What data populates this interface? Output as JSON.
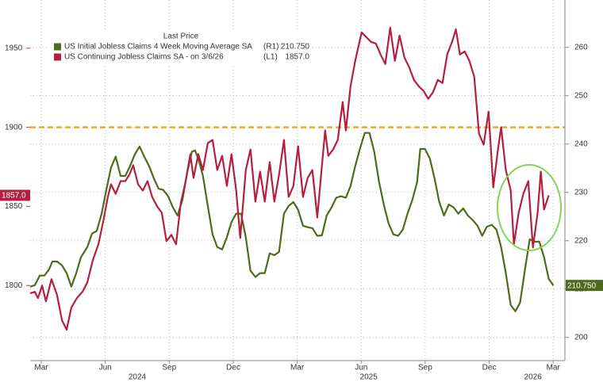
{
  "chart_data": {
    "type": "line",
    "legend_title": "Last Price",
    "legend": "upper left",
    "grid": true,
    "xlim": [
      -0.52,
      24.55
    ],
    "xticks": [
      {
        "value": 0,
        "label": "Mar"
      },
      {
        "value": 3,
        "label": "Jun"
      },
      {
        "value": 6,
        "label": "Sep"
      },
      {
        "value": 9,
        "label": "Dec"
      },
      {
        "value": 12,
        "label": "Mar"
      },
      {
        "value": 15,
        "label": "Jun"
      },
      {
        "value": 18,
        "label": "Sep"
      },
      {
        "value": 21,
        "label": "Dec"
      },
      {
        "value": 24,
        "label": "Mar"
      }
    ],
    "year_ticks": [
      {
        "value": 4.5,
        "label": "2024"
      },
      {
        "value": 15.35,
        "label": "2025"
      },
      {
        "value": 23.05,
        "label": "2026"
      }
    ],
    "ylim": [
      1752.5,
      1980.5
    ],
    "yticks": [
      1800,
      1850,
      1900,
      1950
    ],
    "y2lim": [
      195.2,
      269.8
    ],
    "y2ticks": [
      200,
      210,
      220,
      230,
      240,
      250,
      260
    ],
    "hline": {
      "value": 1900,
      "color": "#f5a623"
    },
    "series": [
      {
        "name": "US Initial Jobless Claims 4 Week Moving Average SA",
        "axis_tag": "(R1)",
        "last_label": "210.750",
        "axis": "y2",
        "color": "#4e6b1c",
        "x": [
          -0.52,
          -0.3,
          -0.07,
          0.15,
          0.37,
          0.52,
          0.74,
          0.97,
          1.19,
          1.41,
          1.64,
          1.86,
          2.16,
          2.38,
          2.6,
          2.83,
          3.05,
          3.27,
          3.49,
          3.72,
          3.94,
          4.16,
          4.39,
          4.61,
          4.83,
          5.06,
          5.28,
          5.5,
          5.72,
          5.95,
          6.17,
          6.39,
          6.62,
          6.84,
          7.06,
          7.21,
          7.36,
          7.58,
          7.81,
          8.03,
          8.25,
          8.48,
          8.7,
          8.92,
          9.14,
          9.37,
          9.59,
          9.81,
          10.04,
          10.26,
          10.48,
          10.71,
          10.93,
          11.15,
          11.38,
          11.6,
          11.82,
          12.04,
          12.27,
          12.49,
          12.71,
          12.94,
          13.16,
          13.38,
          13.61,
          13.83,
          14.05,
          14.28,
          14.5,
          14.72,
          14.94,
          15.17,
          15.39,
          15.61,
          15.84,
          16.06,
          16.28,
          16.51,
          16.73,
          16.95,
          17.17,
          17.4,
          17.62,
          17.77,
          17.99,
          18.22,
          18.44,
          18.66,
          18.88,
          19.11,
          19.33,
          19.55,
          19.78,
          20.0,
          20.22,
          20.45,
          20.67,
          20.89,
          21.12,
          21.34,
          21.56,
          21.78,
          22.01,
          22.23,
          22.45,
          22.68,
          22.9,
          23.12,
          23.35,
          23.57,
          23.79,
          24.01
        ],
        "values": [
          210.5,
          210.8,
          212.8,
          212.8,
          214.1,
          215.7,
          215.7,
          214.9,
          213.3,
          210.5,
          213.3,
          216.6,
          218.7,
          221.5,
          222.0,
          225.6,
          230.5,
          235.1,
          237.4,
          233.4,
          233.4,
          235.4,
          237.9,
          239.5,
          237.4,
          235.4,
          232.9,
          230.8,
          230.5,
          229.2,
          226.9,
          225.2,
          228.5,
          234.1,
          238.4,
          238.7,
          237.0,
          233.4,
          227.2,
          221.3,
          218.7,
          218.2,
          220.7,
          223.9,
          225.6,
          225.6,
          220.7,
          213.8,
          212.5,
          213.3,
          213.3,
          217.4,
          217.0,
          217.7,
          225.6,
          227.2,
          228.0,
          226.4,
          223.1,
          222.8,
          222.6,
          221.0,
          221.1,
          225.2,
          226.9,
          228.9,
          229.2,
          228.9,
          231.3,
          235.4,
          239.0,
          242.3,
          242.3,
          238.4,
          232.1,
          227.5,
          223.6,
          221.3,
          221.0,
          222.3,
          225.6,
          228.5,
          232.1,
          239.0,
          239.0,
          237.0,
          232.9,
          228.0,
          225.2,
          227.5,
          226.9,
          225.6,
          226.7,
          225.2,
          224.3,
          223.1,
          221.0,
          222.9,
          223.3,
          222.3,
          218.7,
          213.3,
          206.7,
          205.4,
          207.2,
          214.1,
          220.3,
          219.8,
          219.8,
          216.6,
          212.1,
          210.75
        ]
      },
      {
        "name": "US Continuing Jobless Claims SA - on 3/6/26",
        "axis_tag": "(L1)",
        "last_label": "1857.0",
        "axis": "y",
        "color": "#b3203f",
        "x": [
          -0.52,
          -0.3,
          -0.15,
          0.04,
          0.22,
          0.48,
          0.74,
          0.97,
          1.19,
          1.41,
          1.67,
          1.93,
          2.16,
          2.42,
          2.68,
          2.9,
          3.12,
          3.27,
          3.49,
          3.72,
          3.94,
          4.13,
          4.31,
          4.54,
          4.76,
          4.98,
          5.2,
          5.43,
          5.65,
          5.87,
          6.1,
          6.32,
          6.54,
          6.77,
          6.99,
          7.14,
          7.36,
          7.58,
          7.81,
          8.03,
          8.25,
          8.48,
          8.7,
          8.92,
          9.14,
          9.33,
          9.59,
          9.81,
          10.04,
          10.26,
          10.48,
          10.71,
          10.93,
          11.15,
          11.38,
          11.6,
          11.82,
          12.04,
          12.27,
          12.49,
          12.71,
          12.94,
          13.16,
          13.31,
          13.46,
          13.68,
          13.9,
          14.13,
          14.28,
          14.5,
          14.72,
          15.02,
          15.24,
          15.46,
          15.69,
          15.91,
          16.13,
          16.36,
          16.58,
          16.8,
          17.03,
          17.25,
          17.47,
          17.7,
          17.92,
          18.14,
          18.36,
          18.59,
          18.81,
          19.03,
          19.26,
          19.44,
          19.63,
          19.85,
          20.07,
          20.3,
          20.52,
          20.74,
          20.97,
          21.19,
          21.41,
          21.56,
          21.78,
          22.01,
          22.16,
          22.38,
          22.6,
          22.83,
          23.05,
          23.27,
          23.42,
          23.57,
          23.79
        ],
        "values": [
          1795,
          1796,
          1792,
          1800,
          1790,
          1804,
          1794,
          1778,
          1772,
          1786,
          1792,
          1796,
          1802,
          1816,
          1826,
          1840,
          1856,
          1864,
          1858,
          1866,
          1866,
          1870,
          1876,
          1864,
          1860,
          1866,
          1856,
          1850,
          1846,
          1828,
          1832,
          1826,
          1852,
          1866,
          1883,
          1868,
          1883,
          1873,
          1890,
          1892,
          1873,
          1882,
          1863,
          1883,
          1860,
          1830,
          1873,
          1886,
          1853,
          1872,
          1853,
          1878,
          1853,
          1870,
          1892,
          1856,
          1863,
          1888,
          1856,
          1868,
          1873,
          1843,
          1876,
          1898,
          1882,
          1886,
          1892,
          1916,
          1898,
          1926,
          1942,
          1960,
          1957,
          1954,
          1953,
          1946,
          1940,
          1963,
          1942,
          1958,
          1944,
          1938,
          1930,
          1926,
          1923,
          1918,
          1922,
          1930,
          1928,
          1946,
          1954,
          1962,
          1946,
          1948,
          1942,
          1932,
          1896,
          1889,
          1910,
          1862,
          1886,
          1900,
          1873,
          1860,
          1826,
          1846,
          1858,
          1866,
          1824,
          1846,
          1872,
          1848,
          1857
        ]
      }
    ]
  }
}
